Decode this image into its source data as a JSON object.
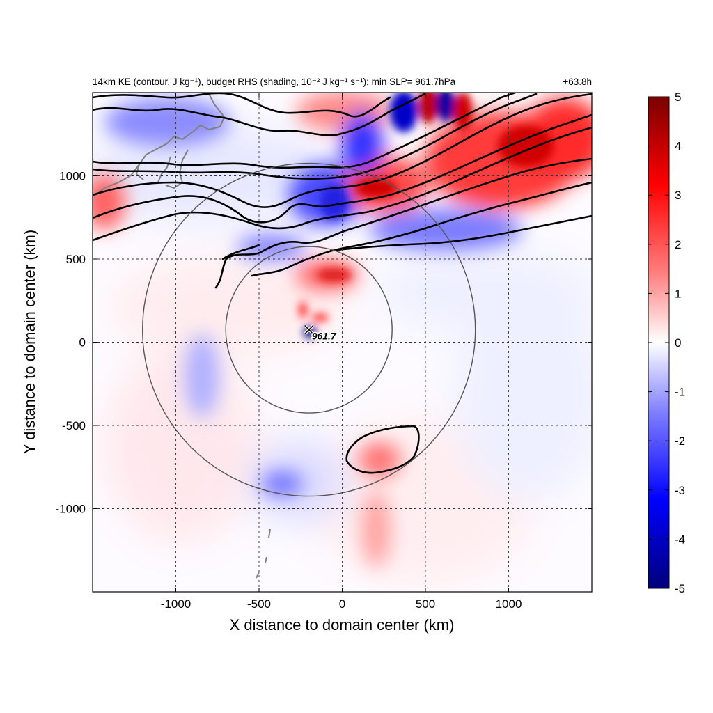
{
  "chart_data": {
    "type": "heatmap",
    "title_left": "14km KE (contour, J kg⁻¹), budget RHS (shading, 10⁻² J kg⁻¹ s⁻¹); min SLP= 961.7hPa",
    "title_right": "+63.8h",
    "xlabel": "X distance to domain center (km)",
    "ylabel": "Y distance to domain center (km)",
    "xlim": [
      -1500,
      1500
    ],
    "ylim": [
      -1500,
      1500
    ],
    "xticks": [
      -1000,
      -500,
      0,
      500,
      1000
    ],
    "yticks": [
      -1000,
      -500,
      0,
      500,
      1000
    ],
    "xtick_labels": [
      "-1000",
      "-500",
      "0",
      "500",
      "1000"
    ],
    "ytick_labels": [
      "-1000",
      "-500",
      "0",
      "500",
      "1000"
    ],
    "grid": true,
    "colorbar": {
      "range": [
        -5,
        5
      ],
      "ticks": [
        5,
        4,
        3,
        2,
        1,
        0,
        -1,
        -2,
        -3,
        -4,
        -5
      ],
      "tick_labels": [
        "5",
        "4",
        "3",
        "2",
        "1",
        "0",
        "-1",
        "-2",
        "-3",
        "-4",
        "-5"
      ],
      "colors": [
        "#00007a",
        "#0000ff",
        "#8080ff",
        "#ffffff",
        "#ff8080",
        "#ff0000",
        "#7a0000"
      ]
    },
    "storm_center": {
      "x": -200,
      "y": 75,
      "min_slp_label": "961.7"
    },
    "range_rings_km": [
      500,
      1000
    ],
    "contour_color": "#000000",
    "coastline_color": "#808080"
  }
}
